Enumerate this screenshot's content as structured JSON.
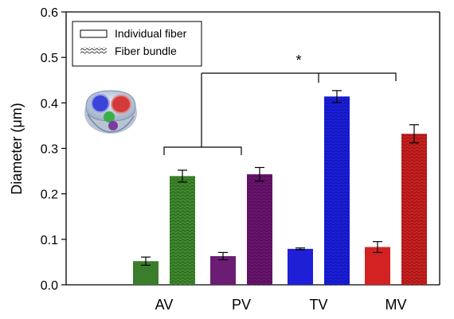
{
  "chart_data": {
    "type": "bar",
    "title": "",
    "xlabel": "",
    "ylabel": "Diameter (μm)",
    "categories": [
      "AV",
      "PV",
      "TV",
      "MV"
    ],
    "ylim": [
      0,
      0.6
    ],
    "yticks": [
      "0.0",
      "0.1",
      "0.2",
      "0.3",
      "0.4",
      "0.5",
      "0.6"
    ],
    "grid": false,
    "legend_position": "top-left",
    "series": [
      {
        "name": "Individual fiber",
        "pattern": "solid",
        "values": [
          0.052,
          0.063,
          0.079,
          0.083
        ],
        "errors": [
          0.009,
          0.008,
          0.002,
          0.012
        ]
      },
      {
        "name": "Fiber bundle",
        "pattern": "wavy",
        "values": [
          0.239,
          0.243,
          0.414,
          0.332
        ],
        "errors": [
          0.013,
          0.015,
          0.013,
          0.02
        ]
      }
    ],
    "category_colors": [
      "#3a7d2a",
      "#6b1d74",
      "#1f1fd8",
      "#d42222"
    ],
    "bundle_colors": [
      "#3f8a2c",
      "#6b1470",
      "#1a1ee0",
      "#cc1f1f"
    ],
    "annotations": [
      {
        "text": "*",
        "bracket": "(AV, PV) vs (TV, MV)"
      }
    ],
    "inset_icon": "heart-valve-icon"
  }
}
